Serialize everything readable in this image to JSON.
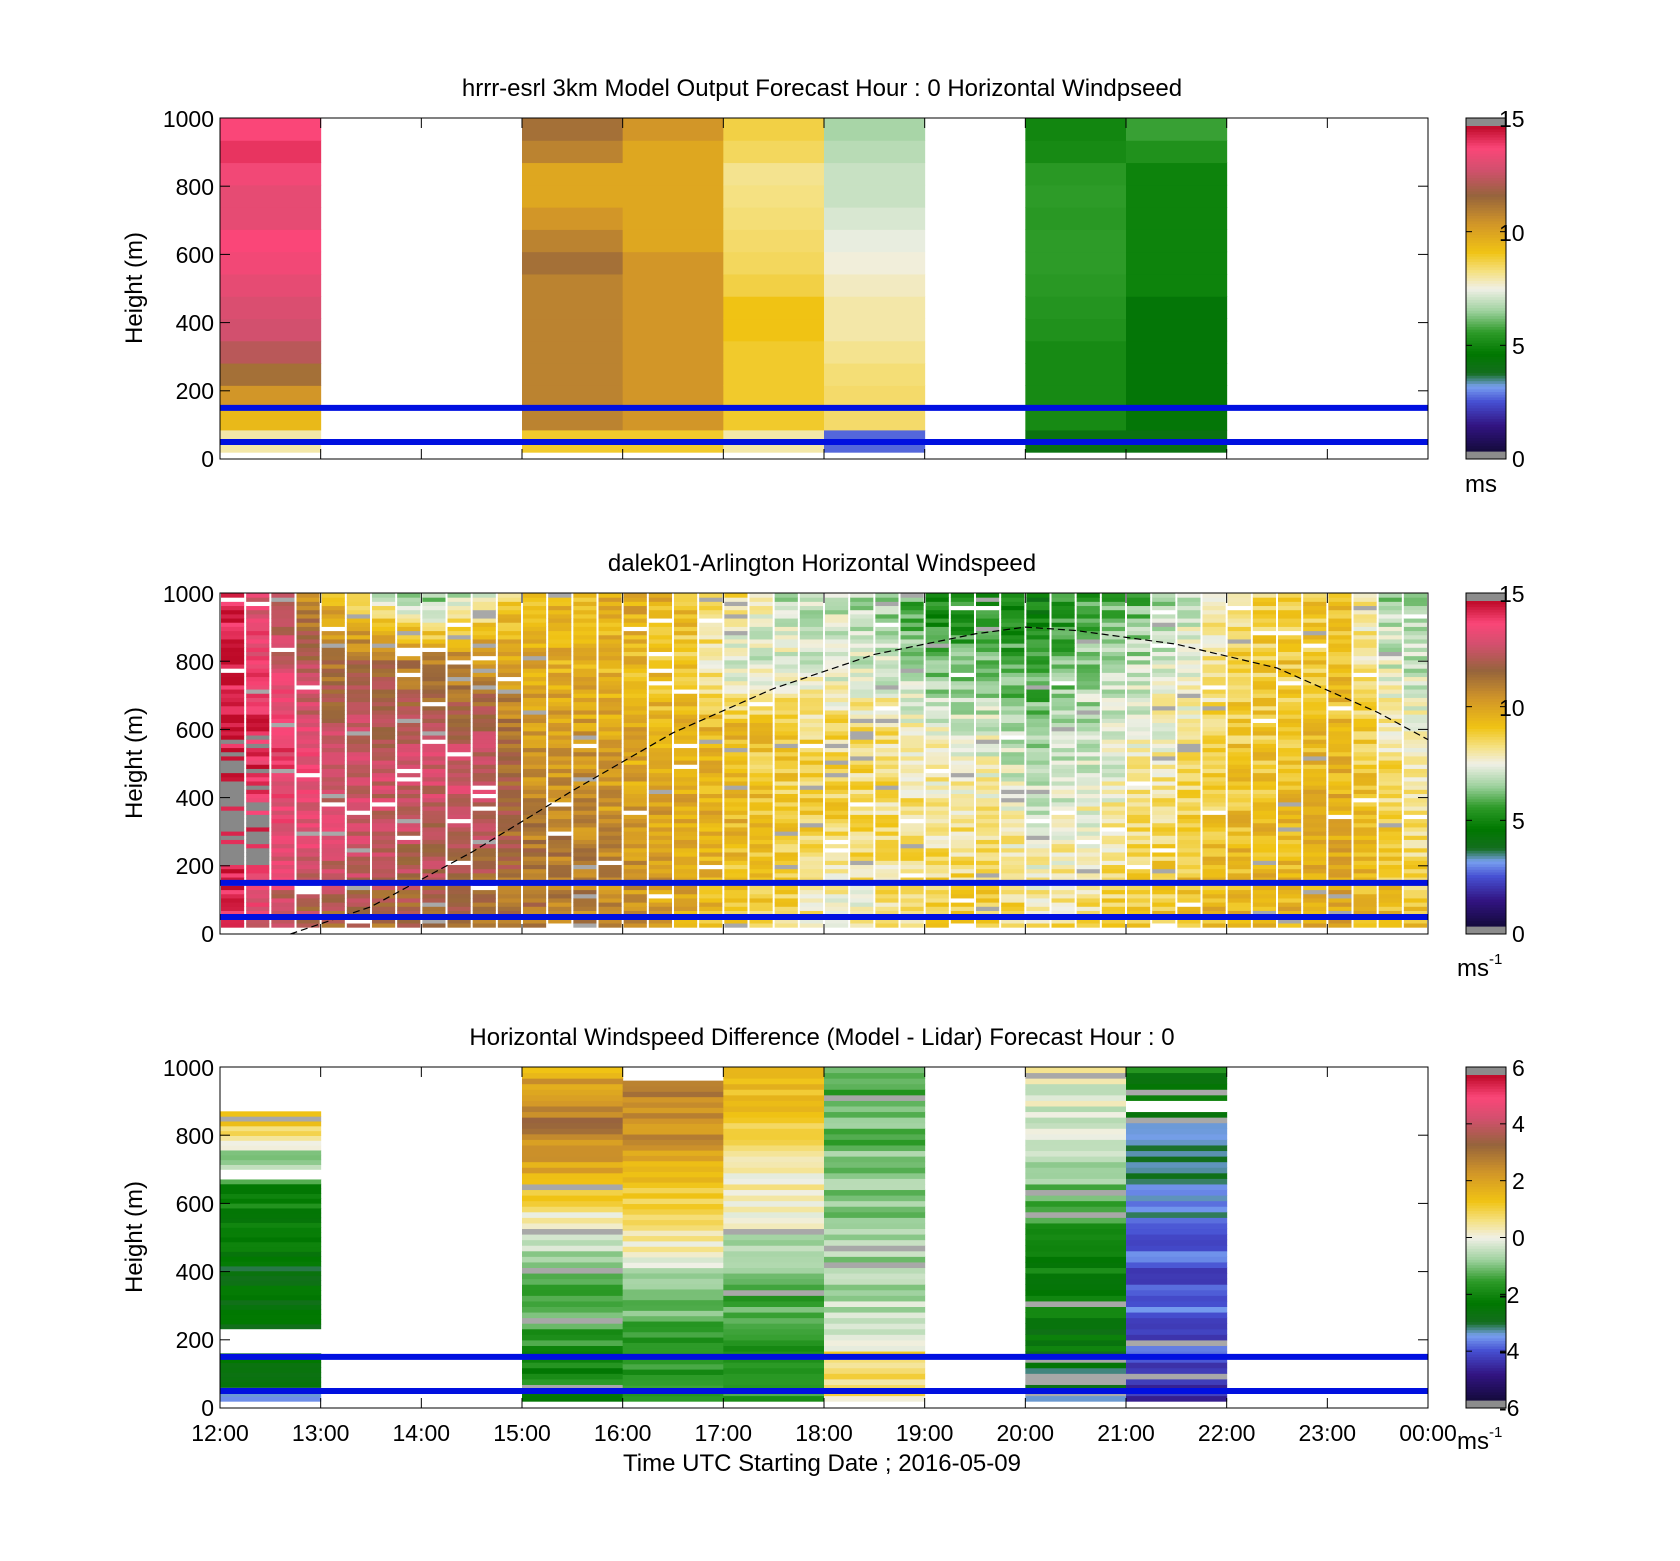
{
  "chart_data": [
    {
      "type": "heatmap",
      "title": "hrrr-esrl 3km Model Output   Forecast Hour : 0 Horizontal Windpseed",
      "ylabel": "Height (m)",
      "ylim": [
        0,
        1000
      ],
      "yticks": [
        "0",
        "200",
        "400",
        "600",
        "800",
        "1000"
      ],
      "colorbar": {
        "min": 0,
        "max": 15,
        "ticks": [
          "0",
          "5",
          "10",
          "15"
        ],
        "unit": "ms",
        "unit_sup": ""
      },
      "reference_lines_m": [
        50,
        150
      ],
      "reference_line_color": "#0010e0",
      "series": [
        {
          "start_hour": 12,
          "bottom_m": 20,
          "values": [
            8,
            9.5,
            10.5,
            11.5,
            12.5,
            13,
            13.2,
            13.5,
            13.8,
            14,
            13.5,
            13.5,
            13.8,
            14.3,
            14
          ]
        },
        {
          "start_hour": 15,
          "bottom_m": 20,
          "values": [
            9,
            11,
            11,
            11,
            11,
            11,
            11,
            11,
            11.5,
            11,
            10.5,
            10,
            10,
            11,
            11.5
          ]
        },
        {
          "start_hour": 16,
          "bottom_m": 20,
          "values": [
            9,
            10.5,
            10.5,
            10.5,
            10.5,
            10.5,
            10.5,
            10.5,
            10.5,
            10,
            10,
            10,
            10,
            10,
            10.5
          ]
        },
        {
          "start_hour": 17,
          "bottom_m": 20,
          "values": [
            8,
            9,
            9,
            9,
            9,
            9.2,
            9.2,
            8.8,
            8.6,
            8.5,
            8.4,
            8.3,
            8.2,
            8.6,
            8.8
          ]
        },
        {
          "start_hour": 18,
          "bottom_m": 20,
          "values": [
            2.5,
            8.5,
            8.5,
            8.4,
            8.2,
            8.0,
            8.0,
            7.8,
            7.6,
            7.4,
            7.2,
            7.0,
            7.0,
            6.8,
            6.6
          ]
        },
        {
          "start_hour": 20,
          "bottom_m": 20,
          "values": [
            4.0,
            5.0,
            5.0,
            5.0,
            5.0,
            5.2,
            5.3,
            5.4,
            5.5,
            5.5,
            5.4,
            5.5,
            5.4,
            5.0,
            4.9
          ]
        },
        {
          "start_hour": 21,
          "bottom_m": 20,
          "values": [
            4.0,
            4.3,
            4.3,
            4.3,
            4.3,
            4.3,
            4.3,
            4.8,
            4.8,
            4.8,
            4.8,
            4.8,
            4.8,
            5.2,
            5.6
          ]
        }
      ]
    },
    {
      "type": "heatmap",
      "title": "dalek01-Arlington  Horizontal Windspeed",
      "ylabel": "Height (m)",
      "ylim": [
        0,
        1000
      ],
      "yticks": [
        "0",
        "200",
        "400",
        "600",
        "800",
        "1000"
      ],
      "colorbar": {
        "min": 0,
        "max": 15,
        "ticks": [
          "0",
          "5",
          "10",
          "15"
        ],
        "unit": "ms",
        "unit_sup": "-1"
      },
      "reference_lines_m": [
        50,
        150
      ],
      "boundary_layer_curve": {
        "x_hours": [
          12.7,
          13.5,
          14.5,
          15.5,
          16.5,
          17.5,
          18.5,
          19.5,
          20.0,
          20.5,
          21.5,
          22.5,
          23.5,
          24.0
        ],
        "heights_m": [
          0,
          80,
          240,
          420,
          590,
          720,
          820,
          880,
          900,
          890,
          850,
          780,
          650,
          570
        ]
      },
      "time_profiles": [
        {
          "hour": 12.0,
          "p": [
            [
              0,
              14.3
            ],
            [
              300,
              14.5
            ],
            [
              600,
              15
            ],
            [
              1000,
              14.5
            ]
          ]
        },
        {
          "hour": 12.5,
          "p": [
            [
              0,
              12
            ],
            [
              200,
              13.5
            ],
            [
              600,
              14
            ],
            [
              1000,
              12
            ]
          ]
        },
        {
          "hour": 13.0,
          "p": [
            [
              0,
              11.5
            ],
            [
              200,
              12.8
            ],
            [
              500,
              13.3
            ],
            [
              800,
              11.5
            ],
            [
              1000,
              9.5
            ]
          ]
        },
        {
          "hour": 13.5,
          "p": [
            [
              0,
              11.5
            ],
            [
              200,
              12.5
            ],
            [
              500,
              13
            ],
            [
              800,
              11.5
            ],
            [
              1000,
              7
            ]
          ]
        },
        {
          "hour": 14.0,
          "p": [
            [
              0,
              11.5
            ],
            [
              200,
              12.2
            ],
            [
              500,
              13
            ],
            [
              800,
              11
            ],
            [
              1000,
              6
            ]
          ]
        },
        {
          "hour": 14.5,
          "p": [
            [
              0,
              11
            ],
            [
              200,
              12
            ],
            [
              450,
              13
            ],
            [
              650,
              12
            ],
            [
              850,
              10
            ],
            [
              1000,
              7.5
            ]
          ]
        },
        {
          "hour": 15.0,
          "p": [
            [
              0,
              11.5
            ],
            [
              200,
              11.5
            ],
            [
              450,
              10.8
            ],
            [
              700,
              10
            ],
            [
              1000,
              9.5
            ]
          ]
        },
        {
          "hour": 15.5,
          "p": [
            [
              0,
              11
            ],
            [
              200,
              11
            ],
            [
              500,
              10.5
            ],
            [
              750,
              9.8
            ],
            [
              1000,
              9.5
            ]
          ]
        },
        {
          "hour": 16.0,
          "p": [
            [
              0,
              10.5
            ],
            [
              200,
              10.5
            ],
            [
              500,
              10
            ],
            [
              800,
              9.5
            ],
            [
              1000,
              10
            ]
          ]
        },
        {
          "hour": 16.5,
          "p": [
            [
              0,
              10
            ],
            [
              250,
              10
            ],
            [
              500,
              9.7
            ],
            [
              800,
              9
            ],
            [
              1000,
              9.5
            ]
          ]
        },
        {
          "hour": 17.0,
          "p": [
            [
              0,
              9
            ],
            [
              300,
              9.5
            ],
            [
              600,
              9.5
            ],
            [
              800,
              7
            ],
            [
              1000,
              8.5
            ]
          ]
        },
        {
          "hour": 17.5,
          "p": [
            [
              0,
              8.5
            ],
            [
              300,
              9
            ],
            [
              600,
              8.8
            ],
            [
              800,
              7.5
            ],
            [
              1000,
              6.8
            ]
          ]
        },
        {
          "hour": 18.0,
          "p": [
            [
              0,
              7.2
            ],
            [
              300,
              8.8
            ],
            [
              600,
              8.5
            ],
            [
              800,
              7.3
            ],
            [
              1000,
              7
            ]
          ]
        },
        {
          "hour": 18.5,
          "p": [
            [
              0,
              8
            ],
            [
              300,
              8.5
            ],
            [
              600,
              8.3
            ],
            [
              800,
              7
            ],
            [
              1000,
              6.5
            ]
          ]
        },
        {
          "hour": 19.0,
          "p": [
            [
              0,
              8.8
            ],
            [
              300,
              8.3
            ],
            [
              600,
              7.5
            ],
            [
              800,
              6
            ],
            [
              1000,
              4.8
            ]
          ]
        },
        {
          "hour": 19.5,
          "p": [
            [
              0,
              9
            ],
            [
              300,
              8.3
            ],
            [
              600,
              7.3
            ],
            [
              800,
              6
            ],
            [
              1000,
              5
            ]
          ]
        },
        {
          "hour": 20.0,
          "p": [
            [
              0,
              8.5
            ],
            [
              300,
              7.5
            ],
            [
              600,
              6.3
            ],
            [
              800,
              5.5
            ],
            [
              1000,
              4.5
            ]
          ]
        },
        {
          "hour": 20.5,
          "p": [
            [
              0,
              8.5
            ],
            [
              300,
              7.8
            ],
            [
              600,
              7
            ],
            [
              800,
              6.5
            ],
            [
              1000,
              5.5
            ]
          ]
        },
        {
          "hour": 21.0,
          "p": [
            [
              0,
              9
            ],
            [
              300,
              8.4
            ],
            [
              600,
              7.5
            ],
            [
              800,
              6.8
            ],
            [
              1000,
              6
            ]
          ]
        },
        {
          "hour": 21.5,
          "p": [
            [
              0,
              9.5
            ],
            [
              300,
              9
            ],
            [
              600,
              8
            ],
            [
              800,
              7.6
            ],
            [
              1000,
              7
            ]
          ]
        },
        {
          "hour": 22.0,
          "p": [
            [
              0,
              9.6
            ],
            [
              300,
              9.4
            ],
            [
              600,
              9
            ],
            [
              800,
              8.8
            ],
            [
              1000,
              8.6
            ]
          ]
        },
        {
          "hour": 22.5,
          "p": [
            [
              0,
              9.8
            ],
            [
              300,
              9.5
            ],
            [
              600,
              9.2
            ],
            [
              800,
              9
            ],
            [
              1000,
              9
            ]
          ]
        },
        {
          "hour": 23.0,
          "p": [
            [
              0,
              10
            ],
            [
              300,
              9.8
            ],
            [
              600,
              9.5
            ],
            [
              800,
              9.2
            ],
            [
              1000,
              9.3
            ]
          ]
        },
        {
          "hour": 23.5,
          "p": [
            [
              0,
              9.5
            ],
            [
              300,
              9
            ],
            [
              600,
              8
            ],
            [
              800,
              7.2
            ],
            [
              1000,
              6.5
            ]
          ]
        },
        {
          "hour": 24.0,
          "p": [
            [
              0,
              9
            ],
            [
              300,
              8
            ],
            [
              600,
              7.3
            ],
            [
              800,
              6.8
            ],
            [
              1000,
              6.5
            ]
          ]
        }
      ]
    },
    {
      "type": "heatmap",
      "title": "Horizontal Windspeed Difference (Model - Lidar) Forecast Hour : 0",
      "xlabel": "Time UTC  Starting Date ; 2016-05-09",
      "ylabel": "Height (m)",
      "ylim": [
        0,
        1000
      ],
      "xticks": [
        "12:00",
        "13:00",
        "14:00",
        "15:00",
        "16:00",
        "17:00",
        "18:00",
        "19:00",
        "20:00",
        "21:00",
        "22:00",
        "23:00",
        "00:00"
      ],
      "yticks": [
        "0",
        "200",
        "400",
        "600",
        "800",
        "1000"
      ],
      "colorbar": {
        "min": -6,
        "max": 6,
        "ticks": [
          "-6",
          "-4",
          "-2",
          "0",
          "2",
          "4",
          "6"
        ],
        "unit": "ms",
        "unit_sup": "-1"
      },
      "reference_lines_m": [
        50,
        150
      ],
      "series": [
        {
          "start_hour": 12,
          "p": [
            [
              20,
              -3.5
            ],
            [
              160,
              -2.5
            ],
            [
              230,
              -2.8
            ],
            [
              400,
              -2.8
            ],
            [
              660,
              -2.0
            ],
            [
              700,
              -0.5
            ],
            [
              730,
              -1.0
            ],
            [
              850,
              1.5
            ],
            [
              870,
              1.5
            ]
          ]
        },
        {
          "start_hour": 15,
          "p": [
            [
              20,
              -2.2
            ],
            [
              200,
              -1.8
            ],
            [
              400,
              -1.0
            ],
            [
              550,
              0.2
            ],
            [
              750,
              2.5
            ],
            [
              850,
              3.0
            ],
            [
              1000,
              1.8
            ]
          ]
        },
        {
          "start_hour": 16,
          "p": [
            [
              20,
              -1.8
            ],
            [
              200,
              -1.5
            ],
            [
              400,
              -0.5
            ],
            [
              500,
              0.6
            ],
            [
              700,
              1.5
            ],
            [
              800,
              2.5
            ],
            [
              960,
              2.8
            ]
          ]
        },
        {
          "start_hour": 17,
          "p": [
            [
              20,
              -1.8
            ],
            [
              400,
              -1.2
            ],
            [
              550,
              0.0
            ],
            [
              700,
              0.3
            ],
            [
              800,
              1.0
            ],
            [
              1000,
              1.8
            ]
          ]
        },
        {
          "start_hour": 18,
          "p": [
            [
              20,
              0.5
            ],
            [
              150,
              1.0
            ],
            [
              200,
              -0.3
            ],
            [
              500,
              -0.8
            ],
            [
              800,
              -1.2
            ],
            [
              1000,
              -1.6
            ]
          ]
        },
        {
          "start_hour": 20,
          "p": [
            [
              20,
              -3.2
            ],
            [
              200,
              -2.5
            ],
            [
              500,
              -2.0
            ],
            [
              700,
              -0.8
            ],
            [
              850,
              -0.3
            ],
            [
              1000,
              0.1
            ]
          ]
        },
        {
          "start_hour": 21,
          "p": [
            [
              20,
              -4.8
            ],
            [
              200,
              -4.2
            ],
            [
              450,
              -4.0
            ],
            [
              620,
              -3.5
            ],
            [
              860,
              -3.0
            ],
            [
              900,
              -2.6
            ],
            [
              1000,
              -2.2
            ]
          ]
        }
      ]
    }
  ]
}
